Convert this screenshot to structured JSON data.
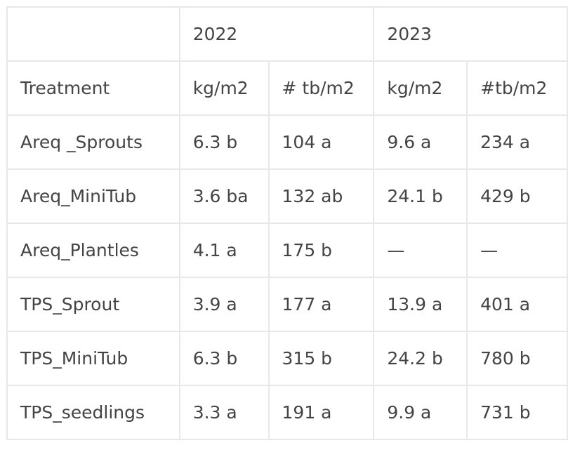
{
  "header": {
    "years": [
      "2022",
      "2023"
    ]
  },
  "columns": [
    "Treatment",
    "kg/m2",
    "# tb/m2",
    "kg/m2",
    "#tb/m2"
  ],
  "rows": [
    [
      "Areq _Sprouts",
      "6.3 b",
      "104 a",
      "9.6 a",
      "234 a"
    ],
    [
      "Areq_MiniTub",
      "3.6 ba",
      "132 ab",
      "24.1 b",
      "429 b"
    ],
    [
      "Areq_Plantles",
      "4.1 a",
      "175 b",
      "—",
      "—"
    ],
    [
      "TPS_Sprout",
      "3.9 a",
      "177 a",
      "13.9 a",
      "401 a"
    ],
    [
      "TPS_MiniTub",
      "6.3 b",
      "315 b",
      "24.2 b",
      "780 b"
    ],
    [
      "TPS_seedlings",
      "3.3 a",
      "191 a",
      "9.9 a",
      "731 b"
    ]
  ]
}
